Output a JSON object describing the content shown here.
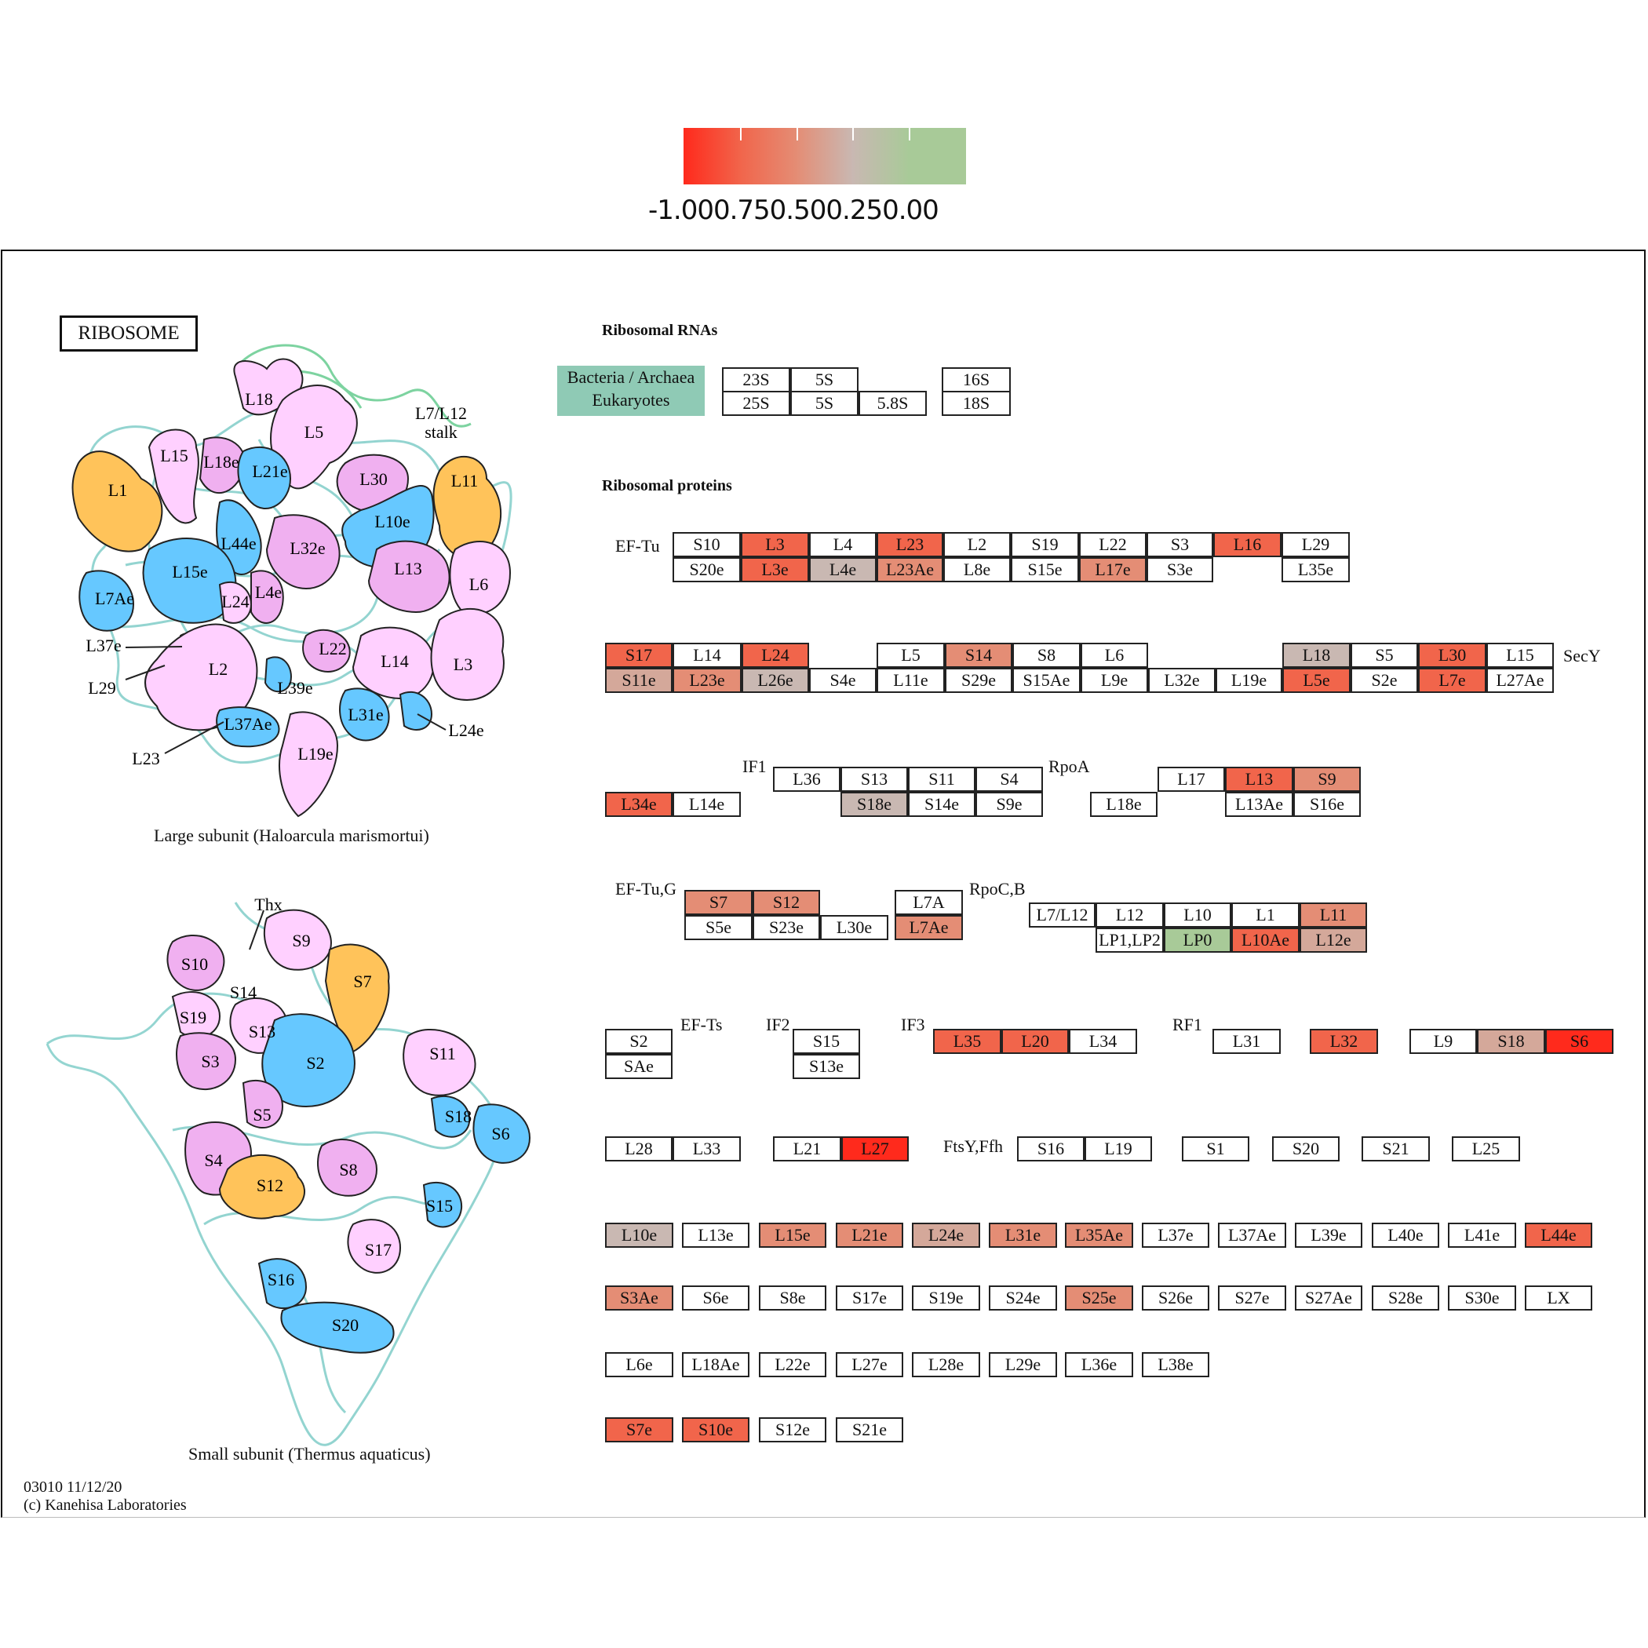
{
  "legend": {
    "labels": "-1.000.750.500.250.00",
    "colors": [
      "#ff2a1c",
      "#f1654b",
      "#e48d75",
      "#c9b8b2",
      "#a8ca98"
    ]
  },
  "title": "RIBOSOME",
  "rna_header": "Ribosomal RNAs",
  "protein_header": "Ribosomal proteins",
  "kingdoms": [
    "Bacteria / Archaea",
    "Eukaryotes"
  ],
  "large_caption": "Large subunit (Haloarcula marismortui)",
  "small_caption": "Small subunit (Thermus aquaticus)",
  "footer": [
    "03010 11/12/20",
    "(c) Kanehisa Laboratories"
  ],
  "colors": {
    "white": "#ffffff",
    "red": "#ff2a1c",
    "orange_red": "#f1654b",
    "salmon": "#e48d75",
    "pale": "#d4a89a",
    "gray": "#c9b8b2",
    "green": "#a8ca98",
    "teal": "#8fcab5",
    "pink_light": "#ffd0ff",
    "pink": "#f0b0f0",
    "blue": "#66c8ff",
    "gold": "#ffc35a",
    "rna_teal": "#88d0cc",
    "rna_green": "#7dd3a0"
  },
  "side_labels": [
    {
      "text": "EF-Tu",
      "id": "ef-tu-1"
    },
    {
      "text": "SecY",
      "id": "secy"
    },
    {
      "text": "IF1",
      "id": "if1"
    },
    {
      "text": "RpoA",
      "id": "rpoa"
    },
    {
      "text": "EF-Tu,G",
      "id": "ef-tu-g"
    },
    {
      "text": "RpoC,B",
      "id": "rpoc-b"
    },
    {
      "text": "EF-Ts",
      "id": "ef-ts"
    },
    {
      "text": "IF2",
      "id": "if2"
    },
    {
      "text": "IF3",
      "id": "if3"
    },
    {
      "text": "RF1",
      "id": "rf1"
    },
    {
      "text": "FtsY,Ffh",
      "id": "ftsy-ffh"
    }
  ],
  "rna_boxes": [
    "23S",
    "5S",
    "16S",
    "25S",
    "5S",
    "5.8S",
    "18S"
  ],
  "protein_boxes": [
    "S10",
    "L3",
    "L4",
    "L23",
    "L2",
    "S19",
    "L22",
    "S3",
    "L16",
    "L29",
    "S20e",
    "L3e",
    "L4e",
    "L23Ae",
    "L8e",
    "S15e",
    "L17e",
    "S3e",
    "L35e",
    "S17",
    "L14",
    "L24",
    "L5",
    "S14",
    "S8",
    "L6",
    "L18",
    "S5",
    "L30",
    "L15",
    "S11e",
    "L23e",
    "L26e",
    "S4e",
    "L11e",
    "S29e",
    "S15Ae",
    "L9e",
    "L32e",
    "L19e",
    "L5e",
    "S2e",
    "L7e",
    "L27Ae",
    "L36",
    "S13",
    "S11",
    "S4",
    "L17",
    "L13",
    "S9",
    "L34e",
    "L14e",
    "S18e",
    "S14e",
    "S9e",
    "L18e",
    "L13Ae",
    "S16e",
    "S7",
    "S12",
    "L7A",
    "L7/L12",
    "L12",
    "L10",
    "L1",
    "L11",
    "S5e",
    "S23e",
    "L30e",
    "L7Ae",
    "LP1,LP2",
    "LP0",
    "L10Ae",
    "L12e",
    "S2",
    "S15",
    "L35",
    "L20",
    "L34",
    "L31",
    "L32",
    "L9",
    "S18",
    "S6",
    "SAe",
    "S13e",
    "L28",
    "L33",
    "L21",
    "L27",
    "S16",
    "L19",
    "S1",
    "S20",
    "S21",
    "L25",
    "L10e",
    "L13e",
    "L15e",
    "L21e",
    "L24e",
    "L31e",
    "L35Ae",
    "L37e",
    "L37Ae",
    "L39e",
    "L40e",
    "L41e",
    "L44e",
    "S3Ae",
    "S6e",
    "S8e",
    "S17e",
    "S19e",
    "S24e",
    "S25e",
    "S26e",
    "S27e",
    "S27Ae",
    "S28e",
    "S30e",
    "LX",
    "L6e",
    "L18Ae",
    "L22e",
    "L27e",
    "L28e",
    "L29e",
    "L36e",
    "L38e",
    "S7e",
    "S10e",
    "S12e",
    "S21e"
  ],
  "large_subunit_labels": [
    "L18",
    "L5",
    "L7/L12",
    "stalk",
    "L15",
    "L18e",
    "L21e",
    "L30",
    "L11",
    "L1",
    "L10e",
    "L44e",
    "L32e",
    "L13",
    "L6",
    "L15e",
    "L7Ae",
    "L24",
    "L4e",
    "L37e",
    "L29",
    "L2",
    "L22",
    "L14",
    "L3",
    "L39e",
    "L31e",
    "L24e",
    "L37Ae",
    "L19e",
    "L23"
  ],
  "small_subunit_labels": [
    "Thx",
    "S9",
    "S10",
    "S7",
    "S14",
    "S19",
    "S13",
    "S3",
    "S2",
    "S11",
    "S18",
    "S6",
    "S5",
    "S4",
    "S12",
    "S8",
    "S15",
    "S17",
    "S16",
    "S20"
  ]
}
